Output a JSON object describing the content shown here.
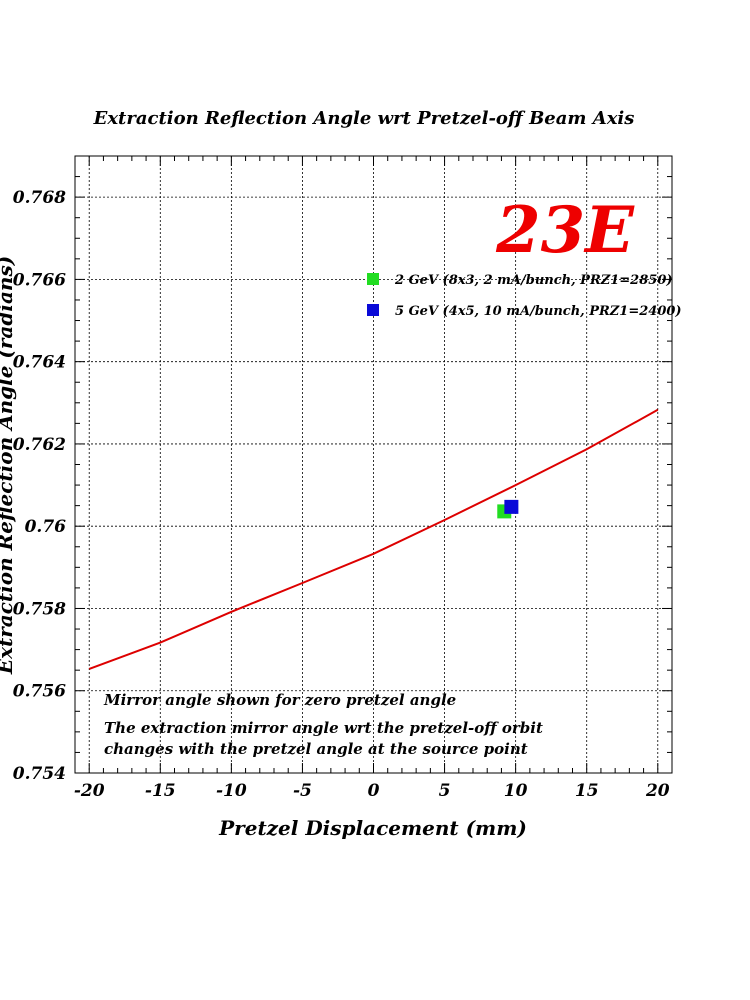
{
  "chart_data": {
    "type": "scatter",
    "title": "Extraction Reflection Angle wrt Pretzel-off Beam Axis",
    "xlabel": "Pretzel Displacement (mm)",
    "ylabel": "Extraction Reflection Angle (radians)",
    "xlim": [
      -21,
      21
    ],
    "ylim": [
      0.754,
      0.769
    ],
    "x_ticks": [
      -20,
      -15,
      -10,
      -5,
      0,
      5,
      10,
      15,
      20
    ],
    "x_tick_labels": [
      "-20",
      "-15",
      "-10",
      "-5",
      "0",
      "5",
      "10",
      "15",
      "20"
    ],
    "y_ticks": [
      0.754,
      0.756,
      0.758,
      0.76,
      0.762,
      0.764,
      0.766,
      0.768
    ],
    "y_tick_labels": [
      "0.754",
      "0.756",
      "0.758",
      "0.76",
      "0.762",
      "0.764",
      "0.766",
      "0.768"
    ],
    "grid": true,
    "legend_position": "top-right",
    "curve": {
      "color": "#dd0000",
      "x": [
        -20,
        -15,
        -10,
        -5,
        0,
        5,
        10,
        15,
        20
      ],
      "y": [
        0.75653,
        0.75717,
        0.75792,
        0.75862,
        0.75933,
        0.76015,
        0.761,
        0.76187,
        0.76283
      ]
    },
    "series": [
      {
        "name": "2 GeV (8x3, 2 mA/bunch, PRZ1=2850)",
        "color": "#22dd22",
        "x": [
          9.2
        ],
        "y": [
          0.76036
        ]
      },
      {
        "name": "5 GeV (4x5, 10 mA/bunch, PRZ1=2400)",
        "color": "#0a0ad8",
        "x": [
          9.7
        ],
        "y": [
          0.76047
        ]
      }
    ],
    "tag": {
      "text": "23E",
      "color": "#ee0000"
    },
    "notes": [
      "Mirror angle shown for zero pretzel angle",
      "The extraction mirror angle wrt the pretzel-off orbit",
      "changes with the pretzel angle at the source point"
    ]
  }
}
